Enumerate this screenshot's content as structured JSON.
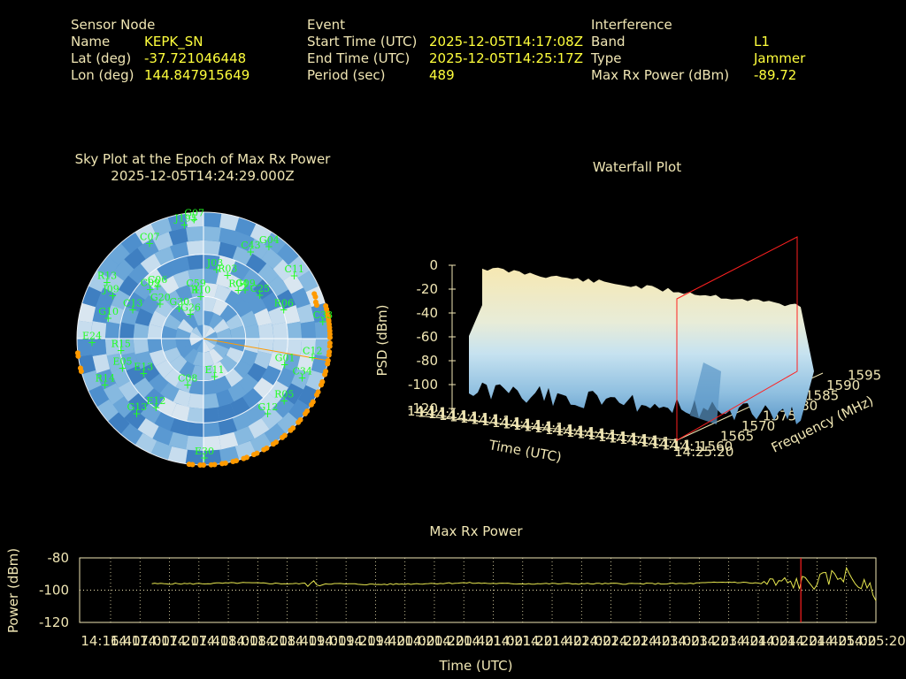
{
  "header": {
    "sensor": {
      "title": "Sensor Node",
      "name_label": "Name",
      "name": "KEPK_SN",
      "lat_label": "Lat (deg)",
      "lat": "-37.721046448",
      "lon_label": "Lon (deg)",
      "lon": "144.847915649"
    },
    "event": {
      "title": "Event",
      "start_label": "Start Time (UTC)",
      "start": "2025-12-05T14:17:08Z",
      "end_label": "End Time (UTC)",
      "end": "2025-12-05T14:25:17Z",
      "period_label": "Period (sec)",
      "period": "489"
    },
    "interference": {
      "title": "Interference",
      "band_label": "Band",
      "band": "L1",
      "type_label": "Type",
      "type": "Jammer",
      "max_label": "Max Rx Power (dBm)",
      "max": "-89.72"
    }
  },
  "colors": {
    "label": "#f0e6b4",
    "value": "#ffff3c",
    "sat_label": "#22ff22",
    "sat_marker": "#ff9a00",
    "jam_line": "#ff2020",
    "power_line": "#e8e850"
  },
  "chart_data": [
    {
      "type": "scatter",
      "id": "skyplot",
      "title": "Sky Plot at the Epoch of Max Rx Power",
      "subtitle": "2025-12-05T14:24:29.000Z",
      "satellites": [
        {
          "id": "C07",
          "az": 330,
          "el": 12
        },
        {
          "id": "J195",
          "az": 350,
          "el": 8
        },
        {
          "id": "G07",
          "az": 355,
          "el": 5
        },
        {
          "id": "J03",
          "az": 10,
          "el": 40
        },
        {
          "id": "R03",
          "az": 20,
          "el": 42
        },
        {
          "id": "C43",
          "az": 28,
          "el": 20
        },
        {
          "id": "G04",
          "az": 35,
          "el": 10
        },
        {
          "id": "C11",
          "az": 55,
          "el": 12
        },
        {
          "id": "G09",
          "az": 40,
          "el": 45
        },
        {
          "id": "R04",
          "az": 35,
          "el": 48
        },
        {
          "id": "C25",
          "az": 52,
          "el": 40
        },
        {
          "id": "R06",
          "az": 70,
          "el": 30
        },
        {
          "id": "C33",
          "az": 82,
          "el": 5
        },
        {
          "id": "G01",
          "az": 108,
          "el": 30
        },
        {
          "id": "C12",
          "az": 100,
          "el": 12
        },
        {
          "id": "C34",
          "az": 112,
          "el": 15
        },
        {
          "id": "R05",
          "az": 128,
          "el": 18
        },
        {
          "id": "G12",
          "az": 140,
          "el": 20
        },
        {
          "id": "E11",
          "az": 165,
          "el": 62
        },
        {
          "id": "E30",
          "az": 180,
          "el": 5
        },
        {
          "id": "E12",
          "az": 215,
          "el": 30
        },
        {
          "id": "G13",
          "az": 222,
          "el": 18
        },
        {
          "id": "C08",
          "az": 200,
          "el": 55
        },
        {
          "id": "E13",
          "az": 240,
          "el": 40
        },
        {
          "id": "R14",
          "az": 245,
          "el": 12
        },
        {
          "id": "E05",
          "az": 250,
          "el": 28
        },
        {
          "id": "R15",
          "az": 262,
          "el": 30
        },
        {
          "id": "E24",
          "az": 268,
          "el": 10
        },
        {
          "id": "G10",
          "az": 282,
          "el": 20
        },
        {
          "id": "J09",
          "az": 295,
          "el": 18
        },
        {
          "id": "R13",
          "az": 300,
          "el": 10
        },
        {
          "id": "C13",
          "az": 292,
          "el": 35
        },
        {
          "id": "C09",
          "az": 312,
          "el": 38
        },
        {
          "id": "C06",
          "az": 318,
          "el": 40
        },
        {
          "id": "G20",
          "az": 308,
          "el": 50
        },
        {
          "id": "C59",
          "az": 350,
          "el": 55
        },
        {
          "id": "R10",
          "az": 355,
          "el": 60
        },
        {
          "id": "G30",
          "az": 320,
          "el": 62
        },
        {
          "id": "G26",
          "az": 330,
          "el": 70
        }
      ],
      "jammer_azimuths": [
        {
          "az": 75,
          "el": 0
        },
        {
          "az": 78,
          "el": 0
        },
        {
          "az": 80,
          "el": 0
        },
        {
          "az": 82,
          "el": 0
        },
        {
          "az": 85,
          "el": 0
        },
        {
          "az": 88,
          "el": 0
        },
        {
          "az": 92,
          "el": 0
        },
        {
          "az": 96,
          "el": 0
        },
        {
          "az": 100,
          "el": 0
        },
        {
          "az": 105,
          "el": 0
        },
        {
          "az": 110,
          "el": 0
        },
        {
          "az": 115,
          "el": 0
        },
        {
          "az": 120,
          "el": 0
        },
        {
          "az": 125,
          "el": 0
        },
        {
          "az": 130,
          "el": 0
        },
        {
          "az": 135,
          "el": 0
        },
        {
          "az": 140,
          "el": 0
        },
        {
          "az": 145,
          "el": 0
        },
        {
          "az": 150,
          "el": 0
        },
        {
          "az": 155,
          "el": 0
        },
        {
          "az": 160,
          "el": 0
        },
        {
          "az": 165,
          "el": 0
        },
        {
          "az": 170,
          "el": 0
        },
        {
          "az": 175,
          "el": 0
        },
        {
          "az": 180,
          "el": 0
        },
        {
          "az": 185,
          "el": 0
        },
        {
          "az": 255,
          "el": 0
        },
        {
          "az": 262,
          "el": 0
        },
        {
          "az": 68,
          "el": 5
        },
        {
          "az": 72,
          "el": 6
        }
      ],
      "max_power_bearing_az": 100
    },
    {
      "type": "area",
      "id": "waterfall",
      "title": "Waterfall Plot",
      "xlabel": "Time (UTC)",
      "ylabel": "Frequency (MHz)",
      "zlabel": "PSD (dBm)",
      "z_ticks": [
        0,
        -20,
        -40,
        -60,
        -80,
        -100,
        -120
      ],
      "freq_ticks": [
        1560,
        1565,
        1570,
        1575,
        1580,
        1585,
        1590,
        1595
      ],
      "time_ticks_label": "14:1",
      "time_end_label": "14:25:20"
    },
    {
      "type": "line",
      "id": "max-rx-power",
      "title": "Max Rx Power",
      "xlabel": "Time (UTC)",
      "ylabel": "Power (dBm)",
      "ylim": [
        -120,
        -80
      ],
      "y_ticks": [
        -80,
        -100,
        -120
      ],
      "x_tick_start": "14:16:40",
      "x_tick_end": "14:25:20",
      "x_ticks": [
        "14:16:40",
        "14:17:00",
        "14:17:20",
        "14:17:40",
        "14:18:00",
        "14:18:20",
        "14:18:40",
        "14:19:00",
        "14:19:20",
        "14:19:40",
        "14:20:00",
        "14:20:20",
        "14:20:40",
        "14:21:00",
        "14:21:20",
        "14:21:40",
        "14:22:00",
        "14:22:20",
        "14:22:40",
        "14:23:00",
        "14:23:20",
        "14:23:40",
        "14:24:00",
        "14:24:20",
        "14:24:40",
        "14:25:00",
        "14:25:20"
      ],
      "x_sec": [
        28,
        60,
        90,
        120,
        150,
        180,
        210,
        240,
        270,
        300,
        330,
        360,
        390,
        420,
        450,
        480,
        490,
        500,
        510,
        515,
        520
      ],
      "values": [
        -96,
        -96,
        -95.5,
        -96,
        -96,
        -96.5,
        -96,
        -95.5,
        -96,
        -96,
        -96,
        -96,
        -96,
        -95,
        -96,
        -95,
        -92,
        -90,
        -97,
        -100,
        -102
      ],
      "marker_sec": 469
    }
  ]
}
